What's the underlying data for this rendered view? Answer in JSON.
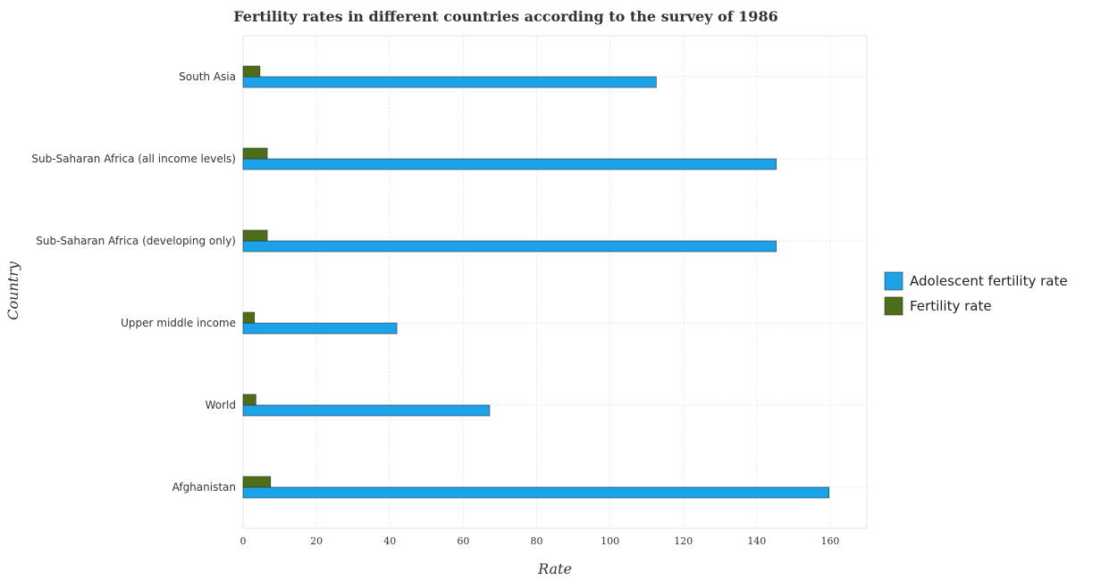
{
  "chart_data": {
    "type": "bar",
    "orientation": "horizontal",
    "title": "Fertility rates in different countries according to the survey of 1986",
    "xlabel": "Rate",
    "ylabel": "Country",
    "xlim": [
      0,
      170
    ],
    "xticks": [
      0,
      20,
      40,
      60,
      80,
      100,
      120,
      140,
      160
    ],
    "grid": true,
    "legend_position": "right",
    "categories": [
      "South Asia",
      "Sub-Saharan Africa (all income levels)",
      "Sub-Saharan Africa (developing only)",
      "Upper middle income",
      "World",
      "Afghanistan"
    ],
    "series": [
      {
        "name": "Adolescent fertility rate",
        "color": "#1aa3e8",
        "values": [
          112.6,
          145.3,
          145.3,
          41.9,
          67.2,
          159.7
        ]
      },
      {
        "name": "Fertility rate",
        "color": "#4d6e17",
        "values": [
          4.6,
          6.6,
          6.6,
          3.1,
          3.5,
          7.5
        ]
      }
    ]
  }
}
